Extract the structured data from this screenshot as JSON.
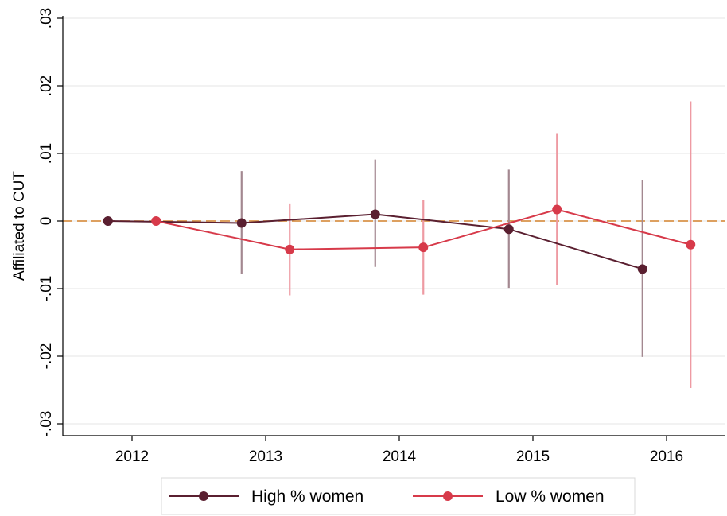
{
  "chart_data": {
    "type": "line",
    "title": "",
    "xlabel": "",
    "ylabel": "Affiliated to CUT",
    "categories": [
      "2012",
      "2013",
      "2014",
      "2015",
      "2016"
    ],
    "ylim": [
      -0.03,
      0.03
    ],
    "yticks": [
      -0.03,
      -0.02,
      -0.01,
      0,
      0.01,
      0.02,
      0.03
    ],
    "ytick_labels": [
      "-.03",
      "-.02",
      "-.01",
      "0",
      ".01",
      ".02",
      ".03"
    ],
    "reference_line": {
      "y": 0,
      "style": "dashed",
      "color": "#d9944a"
    },
    "grid": true,
    "legend_position": "bottom",
    "series": [
      {
        "name": "High % women",
        "color": "#5a1f30",
        "ci_color": "#a38890",
        "offset": -0.18,
        "values": [
          0.0,
          -0.0003,
          0.001,
          -0.0012,
          -0.0071
        ],
        "ci_low": [
          null,
          -0.0078,
          -0.0068,
          -0.0099,
          -0.0201
        ],
        "ci_high": [
          null,
          0.0074,
          0.0091,
          0.0076,
          0.006
        ]
      },
      {
        "name": "Low % women",
        "color": "#d73a4a",
        "ci_color": "#ee9aa2",
        "offset": 0.18,
        "values": [
          0.0,
          -0.0042,
          -0.0039,
          0.0017,
          -0.0035
        ],
        "ci_low": [
          null,
          -0.011,
          -0.0109,
          -0.0095,
          -0.0247
        ],
        "ci_high": [
          null,
          0.0026,
          0.0031,
          0.013,
          0.0177
        ]
      }
    ]
  }
}
